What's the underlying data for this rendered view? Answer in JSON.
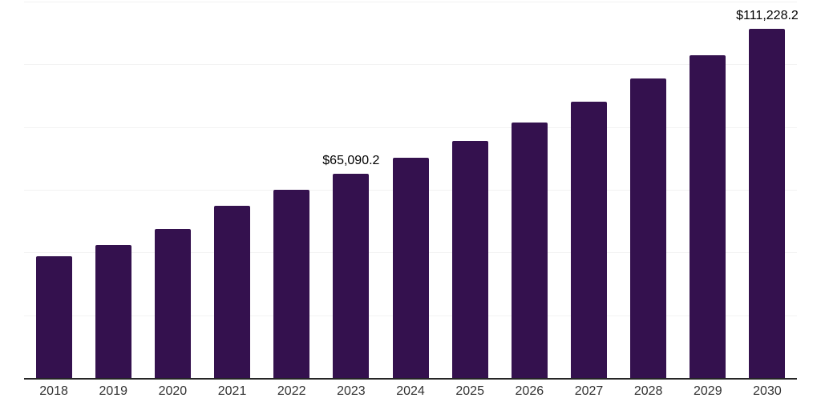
{
  "chart_data": {
    "type": "bar",
    "title": "",
    "xlabel": "",
    "ylabel": "",
    "categories": [
      "2018",
      "2019",
      "2020",
      "2021",
      "2022",
      "2023",
      "2024",
      "2025",
      "2026",
      "2027",
      "2028",
      "2029",
      "2030"
    ],
    "values": [
      38800,
      42300,
      47400,
      54800,
      60100,
      65090.2,
      70200,
      75700,
      81500,
      88000,
      95400,
      103000,
      111228.2
    ],
    "data_labels": {
      "2023": "$65,090.2",
      "2030": "$111,228.2"
    },
    "ylim": [
      0,
      120000
    ],
    "gridline_values": [
      20000,
      40000,
      60000,
      80000,
      100000,
      120000
    ],
    "grid": true,
    "legend": false,
    "colors": {
      "bar": "#34114E",
      "gridline": "#f2f2f2",
      "axis_line": "#262626",
      "tick_label": "#333333",
      "data_label": "#000000",
      "background": "#ffffff"
    }
  }
}
